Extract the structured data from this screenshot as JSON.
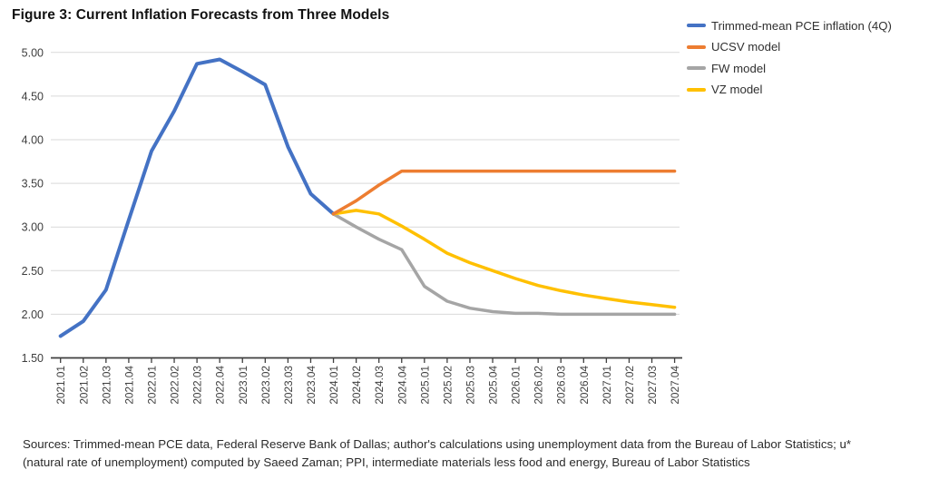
{
  "figure": {
    "title": "Figure 3: Current Inflation Forecasts from Three Models",
    "source_lines": [
      "Sources: Trimmed-mean PCE data, Federal Reserve Bank of Dallas; author's calculations using unemployment data from the Bureau of Labor Statistics; u*",
      "(natural rate of unemployment) computed by Saeed Zaman; PPI, intermediate materials less food and energy, Bureau of Labor Statistics"
    ]
  },
  "chart_data": {
    "type": "line",
    "title": "Figure 3: Current Inflation Forecasts from Three Models",
    "xlabel": "",
    "ylabel": "",
    "ylim": [
      1.5,
      5.0
    ],
    "ytick_step": 0.5,
    "grid": "horizontal",
    "legend_position": "top-right",
    "gridline_color": "#D9D9D9",
    "axis_color": "#3F3F3F",
    "label_color": "#3D3D3D",
    "categories": [
      "2021.01",
      "2021.02",
      "2021.03",
      "2021.04",
      "2022.01",
      "2022.02",
      "2022.03",
      "2022.04",
      "2023.01",
      "2023.02",
      "2023.03",
      "2023.04",
      "2024.01",
      "2024.02",
      "2024.03",
      "2024.04",
      "2025.01",
      "2025.02",
      "2025.03",
      "2025.04",
      "2026.01",
      "2026.02",
      "2026.03",
      "2026.04",
      "2027.01",
      "2027.02",
      "2027.03",
      "2027.04"
    ],
    "series": [
      {
        "name": "Trimmed-mean PCE inflation (4Q)",
        "color": "#4472C4",
        "start_index": 0,
        "draw_order": 1,
        "line_width": 4,
        "values": [
          1.75,
          1.92,
          2.28,
          3.08,
          3.87,
          4.33,
          4.87,
          4.92,
          4.78,
          4.63,
          3.92,
          3.38,
          3.15
        ]
      },
      {
        "name": "UCSV model",
        "color": "#ED7D31",
        "start_index": 12,
        "draw_order": 4,
        "line_width": 3.5,
        "values": [
          3.15,
          3.3,
          3.48,
          3.64,
          3.64,
          3.64,
          3.64,
          3.64,
          3.64,
          3.64,
          3.64,
          3.64,
          3.64,
          3.64,
          3.64,
          3.64
        ]
      },
      {
        "name": "FW model",
        "color": "#A5A5A5",
        "start_index": 12,
        "draw_order": 2,
        "line_width": 3.5,
        "values": [
          3.15,
          3.0,
          2.86,
          2.74,
          2.32,
          2.15,
          2.07,
          2.03,
          2.01,
          2.01,
          2.0,
          2.0,
          2.0,
          2.0,
          2.0,
          2.0
        ]
      },
      {
        "name": "VZ model",
        "color": "#FFC000",
        "start_index": 12,
        "draw_order": 3,
        "line_width": 3.5,
        "values": [
          3.15,
          3.19,
          3.15,
          3.01,
          2.86,
          2.7,
          2.59,
          2.5,
          2.41,
          2.33,
          2.27,
          2.22,
          2.18,
          2.14,
          2.11,
          2.08
        ]
      }
    ]
  }
}
